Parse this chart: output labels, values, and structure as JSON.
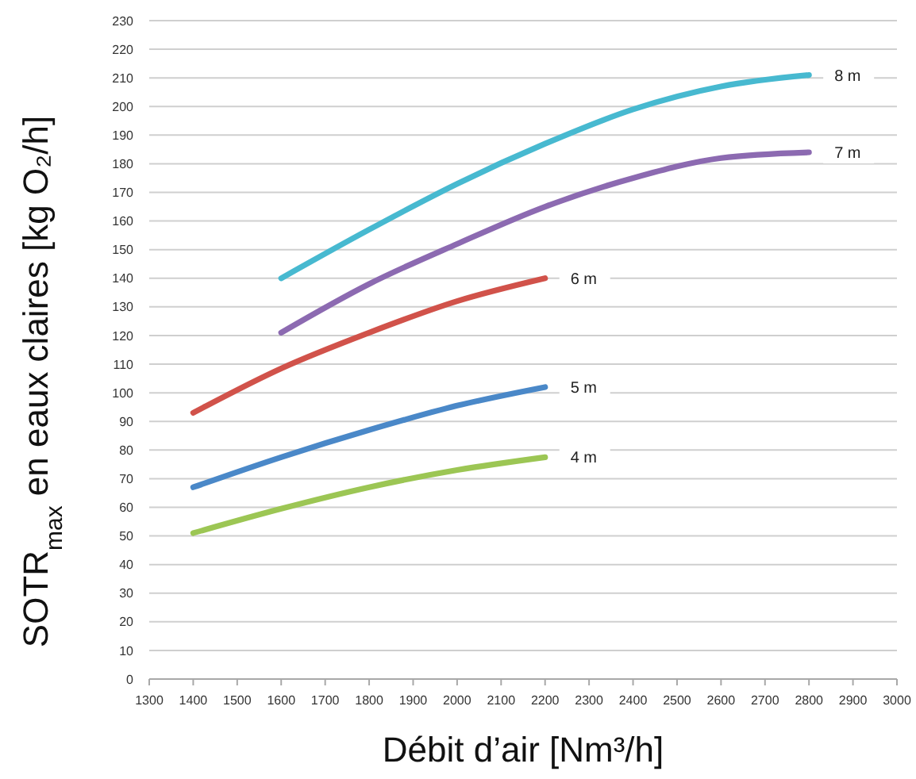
{
  "chart_data": {
    "type": "line",
    "xlabel": "Débit d’air [Nm³/h]",
    "ylabel": "SOTR$_{max}$ en eaux claires [kg O₂/h]",
    "xlim": [
      1300,
      3000
    ],
    "xticks": [
      1300,
      1400,
      1500,
      1600,
      1700,
      1800,
      1900,
      2000,
      2100,
      2200,
      2300,
      2400,
      2500,
      2600,
      2700,
      2800,
      2900,
      3000
    ],
    "ylim": [
      0,
      230
    ],
    "yticks": [
      0,
      10,
      20,
      30,
      40,
      50,
      60,
      70,
      80,
      90,
      100,
      110,
      120,
      130,
      140,
      150,
      160,
      170,
      180,
      190,
      200,
      210,
      220,
      230
    ],
    "grid": "y",
    "line_style": "solid",
    "series": [
      {
        "name": "4 m",
        "color": "#9cc654",
        "x": [
          1400,
          1600,
          1800,
          2000,
          2200
        ],
        "values": [
          51,
          59.5,
          67,
          73,
          77.5
        ]
      },
      {
        "name": "5 m",
        "color": "#4a88c8",
        "x": [
          1400,
          1600,
          1800,
          2000,
          2200
        ],
        "values": [
          67,
          77.5,
          87,
          95.5,
          102
        ]
      },
      {
        "name": "6 m",
        "color": "#d1524a",
        "x": [
          1400,
          1600,
          1800,
          2000,
          2200
        ],
        "values": [
          93,
          108.5,
          121,
          132,
          140
        ]
      },
      {
        "name": "7 m",
        "color": "#8c6ab1",
        "x": [
          1600,
          1800,
          2000,
          2200,
          2400,
          2600,
          2800
        ],
        "values": [
          121,
          138,
          152,
          165,
          175,
          182,
          184
        ]
      },
      {
        "name": "8 m",
        "color": "#47b9d0",
        "x": [
          1600,
          1800,
          2000,
          2200,
          2400,
          2600,
          2800
        ],
        "values": [
          140,
          157,
          173,
          187,
          199,
          207,
          211
        ]
      }
    ]
  }
}
